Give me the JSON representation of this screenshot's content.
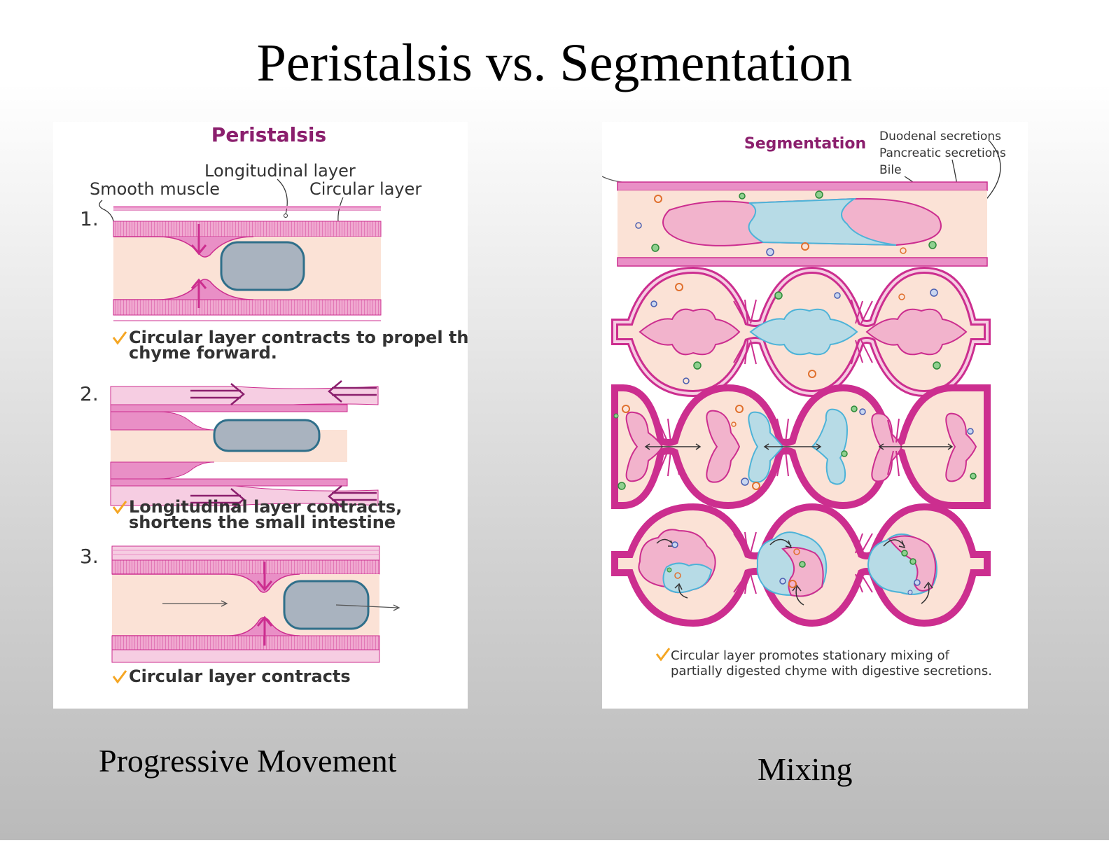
{
  "title": "Peristalsis vs. Segmentation",
  "colors": {
    "muscle": "#e98fc6",
    "muscle_dark": "#cc2e8f",
    "lumen": "#fbe2d6",
    "chyme_gray": "#a9b3bf",
    "chyme_border": "#2f6f8a",
    "chyme_pink": "#f2b3cc",
    "chyme_blue": "#b7dbe6",
    "blue_border": "#4db3d8",
    "heading": "#8b1f6d",
    "check": "#f5a623"
  },
  "peristalsis": {
    "heading": "Peristalsis",
    "labels": {
      "longitudinal": "Longitudinal layer",
      "smooth": "Smooth muscle",
      "circular": "Circular layer"
    },
    "steps": [
      {
        "num": "1.",
        "caption_lines": [
          "Circular layer contracts to propel the",
          "chyme forward."
        ]
      },
      {
        "num": "2.",
        "caption_lines": [
          "Longitudinal layer contracts,",
          "shortens the small intestine"
        ]
      },
      {
        "num": "3.",
        "caption_lines": [
          "Circular layer contracts"
        ]
      }
    ]
  },
  "segmentation": {
    "heading": "Segmentation",
    "labels": {
      "duodenal": "Duodenal secretions",
      "pancreatic": "Pancreatic secretions",
      "bile": "Bile"
    },
    "caption_lines": [
      "Circular layer promotes stationary mixing of",
      "partially digested chyme with digestive secretions."
    ]
  },
  "captions": {
    "left": "Progressive Movement",
    "right": "Mixing"
  }
}
